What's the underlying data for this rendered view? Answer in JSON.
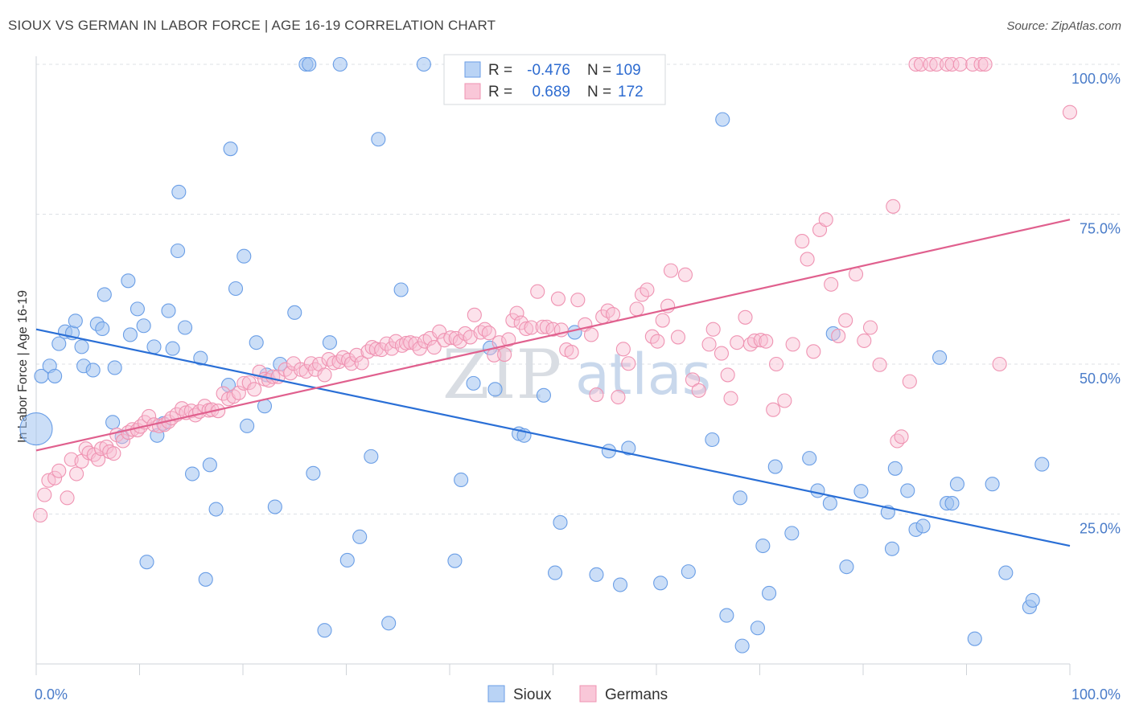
{
  "header": {
    "title": "SIOUX VS GERMAN IN LABOR FORCE | AGE 16-19 CORRELATION CHART",
    "source": "Source: ZipAtlas.com"
  },
  "watermark": {
    "zip": "ZIP",
    "atlas": "atlas"
  },
  "legend": {
    "r_label": "R =",
    "n_label": "N =",
    "sioux": {
      "r": "-0.476",
      "n": "109"
    },
    "germans": {
      "r": "0.689",
      "n": "172"
    }
  },
  "chart_data": {
    "type": "scatter",
    "title": "SIOUX VS GERMAN IN LABOR FORCE | AGE 16-19 CORRELATION CHART",
    "xlabel": "",
    "ylabel": "In Labor Force | Age 16-19",
    "xlim": [
      0,
      100
    ],
    "ylim": [
      0,
      100
    ],
    "x_tick_labels": [
      "0.0%",
      "100.0%"
    ],
    "y_ticks": [
      25,
      50,
      75,
      100
    ],
    "y_tick_labels": [
      "25.0%",
      "50.0%",
      "75.0%",
      "100.0%"
    ],
    "grid": true,
    "legend_position": "top-center",
    "colors": {
      "sioux": "#6a9ee6",
      "sioux_line": "#2a6fd6",
      "germans": "#ef93b2",
      "germans_line": "#e0608e"
    },
    "series": [
      {
        "name": "Sioux",
        "r": -0.476,
        "n": 109,
        "trend": [
          [
            0,
            55.8
          ],
          [
            100,
            19.7
          ]
        ],
        "points": [
          [
            0,
            39.2,
            "big"
          ],
          [
            0.5,
            48
          ],
          [
            1.3,
            49.7
          ],
          [
            1.8,
            48
          ],
          [
            2.2,
            53.4
          ],
          [
            2.8,
            55.4
          ],
          [
            3.5,
            55.2
          ],
          [
            3.8,
            57.2
          ],
          [
            4.4,
            52.9
          ],
          [
            4.6,
            49.7
          ],
          [
            5.5,
            49
          ],
          [
            5.9,
            56.7
          ],
          [
            6.4,
            55.9
          ],
          [
            6.6,
            61.6
          ],
          [
            7.4,
            40.3
          ],
          [
            7.6,
            49.4
          ],
          [
            8.3,
            37.9
          ],
          [
            8.9,
            63.9
          ],
          [
            9.1,
            54.9
          ],
          [
            9.8,
            59.2
          ],
          [
            10.4,
            56.4
          ],
          [
            10.7,
            17
          ],
          [
            11.4,
            52.9
          ],
          [
            11.7,
            38.1
          ],
          [
            12.3,
            40.1
          ],
          [
            12.8,
            58.9
          ],
          [
            13.2,
            52.6
          ],
          [
            13.7,
            68.9
          ],
          [
            13.8,
            78.7
          ],
          [
            14.4,
            56.1
          ],
          [
            15.1,
            31.7
          ],
          [
            15.9,
            51
          ],
          [
            16.4,
            14.1
          ],
          [
            16.8,
            33.2
          ],
          [
            17.4,
            25.8
          ],
          [
            18.6,
            46.5
          ],
          [
            18.8,
            85.9
          ],
          [
            19.3,
            62.6
          ],
          [
            20.1,
            68
          ],
          [
            20.4,
            39.7
          ],
          [
            21.3,
            53.6
          ],
          [
            22.1,
            43
          ],
          [
            22.3,
            48.2
          ],
          [
            23.1,
            26.2
          ],
          [
            23.6,
            50
          ],
          [
            25.0,
            58.6
          ],
          [
            26.1,
            100
          ],
          [
            26.4,
            100
          ],
          [
            26.8,
            31.8
          ],
          [
            27.9,
            5.6
          ],
          [
            29.4,
            100
          ],
          [
            28.4,
            53.6
          ],
          [
            30.1,
            17.3
          ],
          [
            31.3,
            21.2
          ],
          [
            32.4,
            34.6
          ],
          [
            33.1,
            87.5
          ],
          [
            34.1,
            6.8
          ],
          [
            35.3,
            62.4
          ],
          [
            37.5,
            100
          ],
          [
            40.5,
            17.2
          ],
          [
            41.1,
            30.7
          ],
          [
            42.3,
            46.8
          ],
          [
            43.9,
            52.7
          ],
          [
            44.4,
            45.8
          ],
          [
            46.7,
            38.4
          ],
          [
            47.2,
            38.1
          ],
          [
            49.1,
            44.8
          ],
          [
            50.2,
            15.2
          ],
          [
            50.7,
            23.6
          ],
          [
            52.1,
            55.3
          ],
          [
            54.2,
            14.9
          ],
          [
            55.4,
            35.5
          ],
          [
            56.5,
            13.2
          ],
          [
            57.3,
            36
          ],
          [
            60.4,
            13.5
          ],
          [
            63.1,
            15.4
          ],
          [
            65.4,
            37.4
          ],
          [
            66.4,
            90.8
          ],
          [
            66.8,
            8.1
          ],
          [
            68.1,
            27.7
          ],
          [
            68.3,
            3
          ],
          [
            69.8,
            6
          ],
          [
            70.3,
            19.7
          ],
          [
            70.9,
            11.8
          ],
          [
            71.5,
            32.9
          ],
          [
            73.1,
            21.8
          ],
          [
            74.8,
            34.3
          ],
          [
            75.6,
            28.9
          ],
          [
            76.8,
            26.8
          ],
          [
            77.1,
            55.1
          ],
          [
            78.4,
            16.2
          ],
          [
            79.8,
            28.8
          ],
          [
            82.4,
            25.3
          ],
          [
            82.8,
            19.2
          ],
          [
            83.1,
            32.6
          ],
          [
            84.3,
            28.9
          ],
          [
            85.1,
            22.4
          ],
          [
            85.8,
            23
          ],
          [
            87.4,
            51.1
          ],
          [
            88.1,
            26.8
          ],
          [
            88.6,
            26.8
          ],
          [
            89.1,
            30
          ],
          [
            90.8,
            4.2
          ],
          [
            92.5,
            30
          ],
          [
            93.8,
            15.2
          ],
          [
            96.1,
            9.5
          ],
          [
            96.4,
            10.6
          ],
          [
            97.3,
            33.3
          ]
        ]
      },
      {
        "name": "Germans",
        "r": 0.689,
        "n": 172,
        "trend": [
          [
            0,
            35.6
          ],
          [
            100,
            74.1
          ]
        ],
        "points": [
          [
            0.4,
            24.8
          ],
          [
            0.8,
            28.2
          ],
          [
            1.2,
            30.6
          ],
          [
            1.8,
            31
          ],
          [
            2.2,
            32.2
          ],
          [
            3.0,
            27.7
          ],
          [
            3.4,
            34.1
          ],
          [
            3.9,
            31.7
          ],
          [
            4.4,
            33.8
          ],
          [
            4.8,
            35.9
          ],
          [
            5.1,
            35.2
          ],
          [
            5.6,
            34.9
          ],
          [
            6.0,
            34.1
          ],
          [
            6.3,
            35.9
          ],
          [
            6.8,
            36.2
          ],
          [
            7.1,
            35.4
          ],
          [
            7.5,
            35.1
          ],
          [
            7.8,
            38.2
          ],
          [
            8.4,
            37.2
          ],
          [
            8.9,
            38.6
          ],
          [
            9.3,
            39.1
          ],
          [
            9.8,
            39
          ],
          [
            10.1,
            39.6
          ],
          [
            10.5,
            40.3
          ],
          [
            10.9,
            41.3
          ],
          [
            11.4,
            39.9
          ],
          [
            11.9,
            39.7
          ],
          [
            12.4,
            39.9
          ],
          [
            12.8,
            40.4
          ],
          [
            13.1,
            41
          ],
          [
            13.6,
            41.6
          ],
          [
            14.1,
            42.6
          ],
          [
            14.5,
            41.9
          ],
          [
            15.0,
            42.2
          ],
          [
            15.4,
            41.5
          ],
          [
            15.8,
            42.1
          ],
          [
            16.3,
            43
          ],
          [
            16.7,
            42.3
          ],
          [
            17.0,
            42.4
          ],
          [
            17.6,
            42.2
          ],
          [
            18.1,
            45.1
          ],
          [
            18.6,
            44.2
          ],
          [
            19.1,
            44.6
          ],
          [
            19.6,
            45.2
          ],
          [
            20.1,
            46.8
          ],
          [
            20.6,
            46.9
          ],
          [
            21.1,
            45.8
          ],
          [
            21.6,
            48.7
          ],
          [
            22.1,
            47.5
          ],
          [
            22.5,
            47.3
          ],
          [
            22.9,
            47.9
          ],
          [
            23.4,
            47.9
          ],
          [
            24.1,
            49.1
          ],
          [
            24.6,
            48.5
          ],
          [
            24.9,
            50.1
          ],
          [
            25.6,
            49.1
          ],
          [
            26.1,
            48.8
          ],
          [
            26.6,
            50.1
          ],
          [
            27.0,
            49.1
          ],
          [
            27.4,
            50
          ],
          [
            27.9,
            48.2
          ],
          [
            28.3,
            50.8
          ],
          [
            28.8,
            50.2
          ],
          [
            29.3,
            50.4
          ],
          [
            29.7,
            51.1
          ],
          [
            30.2,
            50.7
          ],
          [
            30.5,
            50.1
          ],
          [
            31.0,
            51.5
          ],
          [
            31.5,
            50.2
          ],
          [
            32.1,
            52.1
          ],
          [
            32.5,
            52.8
          ],
          [
            32.9,
            52.5
          ],
          [
            33.4,
            52.4
          ],
          [
            33.9,
            53.4
          ],
          [
            34.4,
            52.6
          ],
          [
            34.8,
            53.8
          ],
          [
            35.4,
            53.1
          ],
          [
            35.8,
            53.5
          ],
          [
            36.2,
            53.6
          ],
          [
            36.7,
            53.4
          ],
          [
            37.1,
            52.6
          ],
          [
            37.6,
            53.8
          ],
          [
            38.1,
            54.3
          ],
          [
            38.5,
            52.8
          ],
          [
            39.0,
            55.4
          ],
          [
            39.5,
            54
          ],
          [
            40.1,
            54.4
          ],
          [
            40.6,
            54.3
          ],
          [
            41.0,
            53.8
          ],
          [
            41.5,
            55.1
          ],
          [
            42.0,
            54.5
          ],
          [
            42.4,
            58.2
          ],
          [
            43.0,
            55.3
          ],
          [
            43.4,
            55.8
          ],
          [
            43.8,
            55.2
          ],
          [
            44.3,
            51.5
          ],
          [
            44.8,
            53.6
          ],
          [
            45.3,
            51.6
          ],
          [
            45.7,
            54.1
          ],
          [
            46.1,
            57.3
          ],
          [
            46.5,
            58.5
          ],
          [
            46.9,
            56.9
          ],
          [
            47.4,
            55.9
          ],
          [
            47.9,
            56.1
          ],
          [
            48.5,
            62.1
          ],
          [
            49.0,
            56.2
          ],
          [
            49.4,
            56.2
          ],
          [
            50.0,
            55.8
          ],
          [
            50.5,
            60.9
          ],
          [
            50.8,
            55.7
          ],
          [
            51.3,
            52.4
          ],
          [
            51.8,
            52
          ],
          [
            52.4,
            60.7
          ],
          [
            53.1,
            56.6
          ],
          [
            53.7,
            54.9
          ],
          [
            54.2,
            44.9
          ],
          [
            54.8,
            57.9
          ],
          [
            55.3,
            58.9
          ],
          [
            55.8,
            58.3
          ],
          [
            56.3,
            44.5
          ],
          [
            56.8,
            52.5
          ],
          [
            57.3,
            50.1
          ],
          [
            58.1,
            59.2
          ],
          [
            58.6,
            61.6
          ],
          [
            59.1,
            62.4
          ],
          [
            59.6,
            54.6
          ],
          [
            60.1,
            53.8
          ],
          [
            60.6,
            57.3
          ],
          [
            61.1,
            59.7
          ],
          [
            61.4,
            65.6
          ],
          [
            62.1,
            54.5
          ],
          [
            62.8,
            64.9
          ],
          [
            63.5,
            47.4
          ],
          [
            64.1,
            45.6
          ],
          [
            65.1,
            53.3
          ],
          [
            65.5,
            55.8
          ],
          [
            66.3,
            51.8
          ],
          [
            66.9,
            48.2
          ],
          [
            67.2,
            44.3
          ],
          [
            67.8,
            53.6
          ],
          [
            68.6,
            57.8
          ],
          [
            69.1,
            53.3
          ],
          [
            69.5,
            53.9
          ],
          [
            70.1,
            54
          ],
          [
            70.6,
            53.8
          ],
          [
            71.3,
            42.4
          ],
          [
            71.6,
            50
          ],
          [
            72.4,
            43.9
          ],
          [
            73.2,
            53.3
          ],
          [
            74.1,
            70.5
          ],
          [
            74.6,
            67.5
          ],
          [
            75.2,
            52.1
          ],
          [
            75.8,
            72.4
          ],
          [
            76.4,
            74.1
          ],
          [
            76.9,
            63.3
          ],
          [
            77.6,
            54.7
          ],
          [
            78.3,
            57.3
          ],
          [
            79.3,
            65
          ],
          [
            80.1,
            53.9
          ],
          [
            80.7,
            56.1
          ],
          [
            81.6,
            49.9
          ],
          [
            82.9,
            76.3
          ],
          [
            83.3,
            37.2
          ],
          [
            83.7,
            37.9
          ],
          [
            84.5,
            47.1
          ],
          [
            85.1,
            100
          ],
          [
            85.6,
            100
          ],
          [
            86.5,
            100
          ],
          [
            87.1,
            100
          ],
          [
            88.1,
            100
          ],
          [
            88.6,
            100
          ],
          [
            89.4,
            100
          ],
          [
            90.6,
            100
          ],
          [
            91.4,
            100
          ],
          [
            91.8,
            100
          ],
          [
            93.2,
            50
          ],
          [
            100,
            92
          ]
        ]
      }
    ]
  }
}
